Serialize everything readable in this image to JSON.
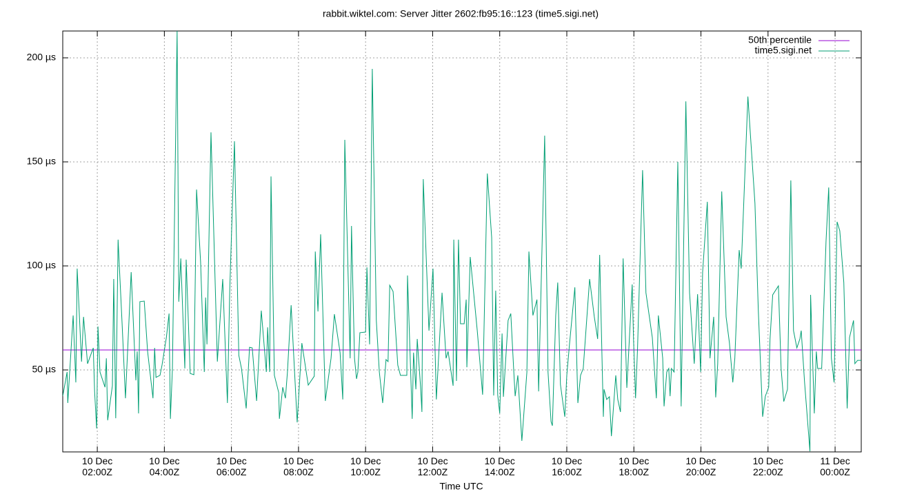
{
  "chart_data": {
    "type": "line",
    "title": "rabbit.wiktel.com: Server Jitter 2602:fb95:16::123 (time5.sigi.net)",
    "x_label": "Time UTC",
    "xlim": [
      0.97,
      24.78
    ],
    "ylim": [
      10.6,
      212.9
    ],
    "grid": true,
    "legend": "top-right",
    "xticks": [
      {
        "value": 2,
        "label": "10 Dec\n02:00Z"
      },
      {
        "value": 4,
        "label": "10 Dec\n04:00Z"
      },
      {
        "value": 6,
        "label": "10 Dec\n06:00Z"
      },
      {
        "value": 8,
        "label": "10 Dec\n08:00Z"
      },
      {
        "value": 10,
        "label": "10 Dec\n10:00Z"
      },
      {
        "value": 12,
        "label": "10 Dec\n12:00Z"
      },
      {
        "value": 14,
        "label": "10 Dec\n14:00Z"
      },
      {
        "value": 16,
        "label": "10 Dec\n16:00Z"
      },
      {
        "value": 18,
        "label": "10 Dec\n18:00Z"
      },
      {
        "value": 20,
        "label": "10 Dec\n20:00Z"
      },
      {
        "value": 22,
        "label": "10 Dec\n22:00Z"
      },
      {
        "value": 24,
        "label": "11 Dec\n00:00Z"
      }
    ],
    "yticks": [
      {
        "value": 50,
        "label": "50 µs"
      },
      {
        "value": 100,
        "label": "100 µs"
      },
      {
        "value": 150,
        "label": "150 µs"
      },
      {
        "value": 200,
        "label": "200 µs"
      }
    ],
    "series": [
      {
        "name": "50th percentile",
        "color": "#9400d3",
        "x": [
          0.97,
          24.78
        ],
        "values": [
          59.6,
          59.6
        ]
      },
      {
        "name": "time5.sigi.net",
        "color": "#009e73",
        "x": [
          0.97,
          1.1,
          1.12,
          1.28,
          1.36,
          1.4,
          1.53,
          1.59,
          1.71,
          1.88,
          1.92,
          1.98,
          2.02,
          2.08,
          2.23,
          2.27,
          2.31,
          2.45,
          2.49,
          2.55,
          2.62,
          2.74,
          2.84,
          3.01,
          3.15,
          3.19,
          3.23,
          3.27,
          3.4,
          3.5,
          3.66,
          3.71,
          3.75,
          3.87,
          3.93,
          4.06,
          4.14,
          4.18,
          4.24,
          4.38,
          4.43,
          4.49,
          4.61,
          4.65,
          4.77,
          4.88,
          4.96,
          5.08,
          5.19,
          5.23,
          5.27,
          5.39,
          5.58,
          5.74,
          5.88,
          5.95,
          6.09,
          6.22,
          6.3,
          6.44,
          6.54,
          6.62,
          6.75,
          6.89,
          7.04,
          7.08,
          7.14,
          7.18,
          7.28,
          7.41,
          7.43,
          7.53,
          7.61,
          7.67,
          7.78,
          7.96,
          8.1,
          8.29,
          8.47,
          8.5,
          8.58,
          8.66,
          8.8,
          8.97,
          9.07,
          9.24,
          9.32,
          9.38,
          9.54,
          9.58,
          9.67,
          9.73,
          9.77,
          9.83,
          10.0,
          10.04,
          10.12,
          10.2,
          10.32,
          10.41,
          10.51,
          10.61,
          10.67,
          10.72,
          10.82,
          10.96,
          11.04,
          11.23,
          11.25,
          11.39,
          11.43,
          11.5,
          11.54,
          11.64,
          11.68,
          11.72,
          11.89,
          12.01,
          12.11,
          12.28,
          12.4,
          12.46,
          12.61,
          12.63,
          12.71,
          12.77,
          12.83,
          12.94,
          13.0,
          13.02,
          13.12,
          13.33,
          13.49,
          13.63,
          13.76,
          13.82,
          13.88,
          13.94,
          14.0,
          14.07,
          14.11,
          14.25,
          14.33,
          14.42,
          14.46,
          14.54,
          14.66,
          14.81,
          14.87,
          14.99,
          15.11,
          15.16,
          15.34,
          15.44,
          15.53,
          15.57,
          15.67,
          15.73,
          15.81,
          15.94,
          16.0,
          16.08,
          16.24,
          16.33,
          16.41,
          16.49,
          16.68,
          16.82,
          16.92,
          16.98,
          17.09,
          17.11,
          17.19,
          17.27,
          17.33,
          17.46,
          17.52,
          17.6,
          17.68,
          17.79,
          17.95,
          17.99,
          18.05,
          18.11,
          18.26,
          18.36,
          18.55,
          18.67,
          18.73,
          18.86,
          18.9,
          18.98,
          19.04,
          19.08,
          19.12,
          19.2,
          19.31,
          19.41,
          19.55,
          19.66,
          19.8,
          19.9,
          19.99,
          20.05,
          20.19,
          20.27,
          20.38,
          20.44,
          20.5,
          20.62,
          20.75,
          20.85,
          20.95,
          21.01,
          21.14,
          21.2,
          21.4,
          21.61,
          21.71,
          21.84,
          21.92,
          22.02,
          22.06,
          22.14,
          22.31,
          22.39,
          22.47,
          22.58,
          22.68,
          22.76,
          22.86,
          22.95,
          22.99,
          23.09,
          23.25,
          23.27,
          23.38,
          23.44,
          23.48,
          23.6,
          23.73,
          23.81,
          23.89,
          23.97,
          24.06,
          24.14,
          24.26,
          24.36,
          24.43,
          24.55,
          24.59,
          24.67,
          24.78
        ],
        "values": [
          37.4,
          49.0,
          34.1,
          76.2,
          44.0,
          98.7,
          54.0,
          75.5,
          53.0,
          60.6,
          39.7,
          21.9,
          70.9,
          49.0,
          41.7,
          55.6,
          25.8,
          42.4,
          93.7,
          26.8,
          112.6,
          72.2,
          36.4,
          97.0,
          45.0,
          58.9,
          29.1,
          82.8,
          83.1,
          58.9,
          36.4,
          60.6,
          46.4,
          47.4,
          52.3,
          65.6,
          77.1,
          26.5,
          50.7,
          213,
          82.8,
          103.6,
          50.7,
          103.0,
          48.3,
          47.7,
          136.7,
          102.0,
          49.0,
          84.8,
          62.3,
          164.2,
          54.0,
          93.7,
          34.1,
          88.7,
          159.9,
          57.0,
          50.7,
          31.5,
          60.9,
          60.6,
          35.1,
          78.5,
          49.0,
          70.5,
          49.0,
          143.0,
          47.4,
          39.1,
          26.5,
          41.7,
          36.4,
          49.0,
          81.1,
          24.8,
          62.9,
          42.7,
          47.0,
          106.9,
          78.1,
          115.2,
          35.1,
          55.6,
          76.8,
          58.3,
          35.8,
          160.6,
          55.6,
          119.2,
          55.6,
          45.7,
          49.0,
          67.9,
          68.2,
          99.3,
          62.3,
          194.7,
          73.8,
          49.0,
          34.1,
          55.0,
          54.0,
          90.7,
          87.7,
          52.3,
          47.4,
          47.4,
          95.4,
          26.5,
          58.3,
          40.7,
          64.9,
          41.7,
          29.8,
          141.7,
          68.9,
          98.7,
          35.8,
          87.1,
          55.6,
          58.9,
          42.4,
          112.6,
          44.7,
          112.6,
          72.2,
          72.2,
          83.8,
          51.3,
          104.3,
          68.9,
          38.1,
          144.4,
          113.6,
          37.7,
          88.1,
          38.1,
          29.1,
          67.5,
          37.1,
          73.8,
          77.1,
          49.0,
          37.4,
          47.4,
          15.9,
          49.0,
          106.9,
          76.2,
          83.8,
          39.7,
          162.6,
          49.0,
          25.2,
          23.2,
          76.2,
          92.0,
          43.0,
          27.5,
          47.4,
          62.3,
          89.7,
          34.1,
          47.4,
          50.7,
          93.7,
          75.5,
          64.9,
          105.3,
          27.5,
          40.7,
          35.8,
          37.1,
          18.2,
          47.4,
          35.8,
          29.8,
          103.6,
          41.4,
          91.1,
          64.6,
          36.4,
          60.6,
          146.0,
          87.1,
          65.6,
          36.4,
          76.2,
          55.6,
          32.5,
          49.0,
          50.7,
          37.4,
          50.7,
          49.0,
          150.0,
          32.5,
          179.1,
          87.1,
          53.0,
          86.4,
          49.0,
          97.0,
          130.8,
          55.6,
          75.5,
          36.8,
          53.0,
          135.8,
          75.5,
          62.9,
          44.0,
          55.6,
          107.6,
          98.7,
          181.4,
          130.1,
          78.8,
          27.5,
          37.4,
          41.7,
          64.9,
          86.1,
          90.4,
          50.7,
          34.8,
          40.7,
          141.1,
          68.9,
          60.6,
          64.9,
          68.9,
          44.0,
          10.9,
          86.1,
          29.1,
          58.9,
          50.7,
          50.7,
          111.9,
          137.7,
          55.6,
          44.0,
          121.2,
          116.9,
          92.0,
          31.5,
          65.6,
          73.8,
          53.0,
          54.6,
          54.6
        ]
      }
    ]
  }
}
